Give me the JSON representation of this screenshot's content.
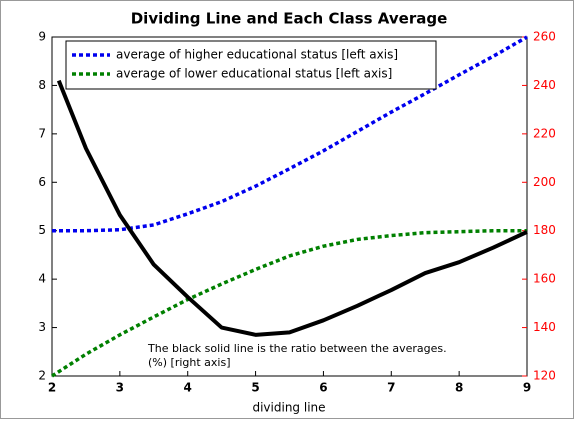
{
  "chart_data": {
    "type": "line",
    "title": "Dividing Line and Each Class Average",
    "x_label": "dividing line",
    "annotation": [
      "The black solid line is the ratio between the averages.",
      "(%) [right axis]"
    ],
    "xlim": [
      2,
      9
    ],
    "xticks": [
      2,
      3,
      4,
      5,
      6,
      7,
      8,
      9
    ],
    "ylim": [
      2,
      9
    ],
    "yticks": [
      2,
      3,
      4,
      5,
      6,
      7,
      8,
      9
    ],
    "y2lim": [
      120,
      260
    ],
    "y2ticks": [
      120,
      140,
      160,
      180,
      200,
      220,
      240,
      260
    ],
    "y2_color": "#ff0000",
    "legend": "top-left",
    "series": [
      {
        "name": "average of higher educational status [left axis]",
        "color": "#0000ee",
        "style": "dotted",
        "x": [
          2,
          2.5,
          3,
          3.5,
          4,
          4.5,
          5,
          5.5,
          6,
          6.5,
          7,
          7.5,
          8,
          8.5,
          9
        ],
        "values": [
          5,
          5,
          5.02,
          5.12,
          5.35,
          5.6,
          5.92,
          6.28,
          6.65,
          7.05,
          7.45,
          7.83,
          8.22,
          8.6,
          9
        ]
      },
      {
        "name": "average of lower educational status [left axis]",
        "color": "#008000",
        "style": "dotted",
        "x": [
          2,
          2.5,
          3,
          3.5,
          4,
          4.5,
          5,
          5.5,
          6,
          6.5,
          7,
          7.5,
          8,
          8.5,
          9
        ],
        "values": [
          2,
          2.45,
          2.85,
          3.22,
          3.58,
          3.9,
          4.2,
          4.48,
          4.68,
          4.82,
          4.9,
          4.96,
          4.98,
          5,
          5
        ]
      },
      {
        "color": "#000000",
        "style": "solid",
        "axis": "y2",
        "x": [
          2.1,
          2.5,
          3,
          3.5,
          4,
          4.5,
          5,
          5.5,
          6,
          6.5,
          7,
          7.5,
          8,
          8.5,
          9
        ],
        "values": [
          242,
          214,
          186.5,
          166,
          152.6,
          140,
          137,
          138,
          143,
          149,
          155.5,
          162.5,
          167,
          173,
          179.5
        ]
      }
    ]
  }
}
